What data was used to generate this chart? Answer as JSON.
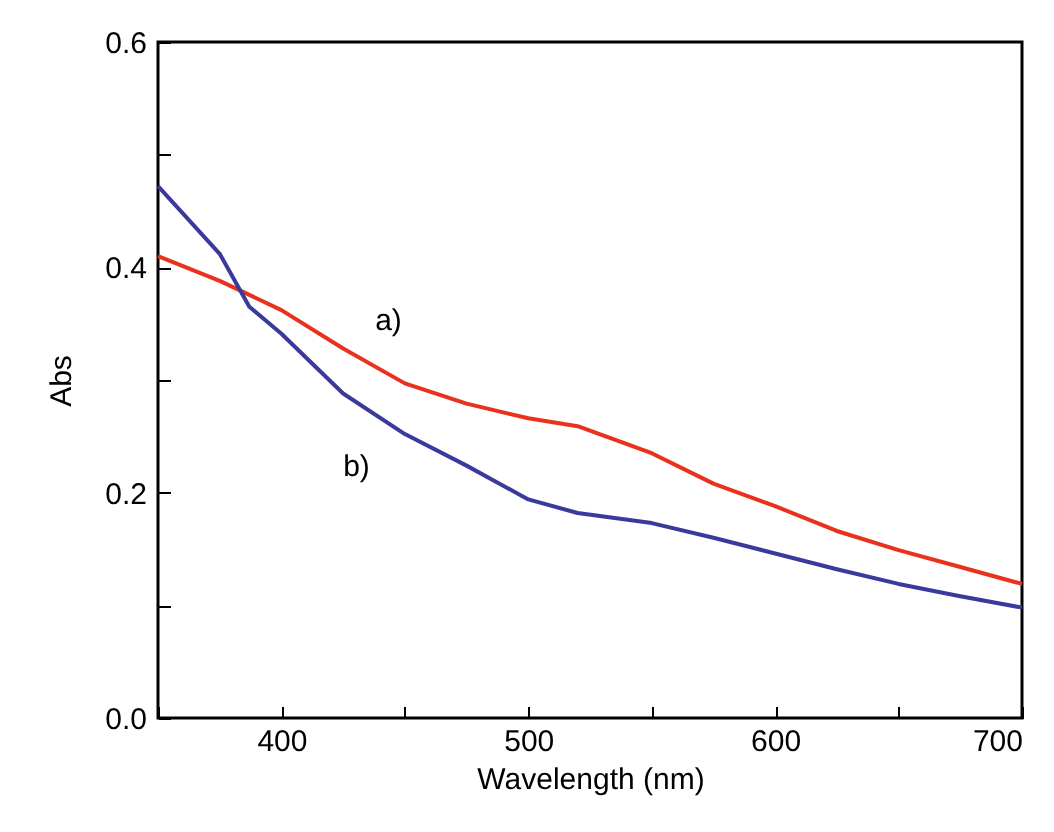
{
  "chart_data": {
    "type": "line",
    "xlabel": "Wavelength (nm)",
    "ylabel": "Abs",
    "xlim": [
      350,
      700
    ],
    "ylim": [
      0,
      0.6
    ],
    "xticks": [
      {
        "value": 350,
        "label": null
      },
      400,
      {
        "value": 450,
        "label": null
      },
      500,
      {
        "value": 550,
        "label": null
      },
      600,
      {
        "value": 650,
        "label": null
      },
      700
    ],
    "yticks": [
      "0.0",
      {
        "value": 0.1,
        "label": null
      },
      0.2,
      {
        "value": 0.3,
        "label": null
      },
      0.4,
      {
        "value": 0.5,
        "label": null
      },
      0.6
    ],
    "grid": false,
    "line_style": "solid",
    "marker": "none",
    "series": [
      {
        "name": "a)",
        "color": "#e8321e",
        "x": [
          350,
          375,
          400,
          425,
          450,
          475,
          500,
          520,
          550,
          575,
          600,
          625,
          650,
          675,
          700
        ],
        "values": [
          0.41,
          0.388,
          0.362,
          0.328,
          0.297,
          0.279,
          0.266,
          0.259,
          0.235,
          0.208,
          0.188,
          0.166,
          0.149,
          0.134,
          0.119
        ]
      },
      {
        "name": "b)",
        "color": "#3a3a9c",
        "x": [
          350,
          375,
          387,
          400,
          425,
          450,
          475,
          500,
          520,
          550,
          575,
          600,
          625,
          650,
          675,
          700
        ],
        "values": [
          0.472,
          0.412,
          0.365,
          0.341,
          0.288,
          0.252,
          0.224,
          0.194,
          0.182,
          0.173,
          0.16,
          0.146,
          0.132,
          0.119,
          0.108,
          0.098
        ]
      }
    ]
  }
}
